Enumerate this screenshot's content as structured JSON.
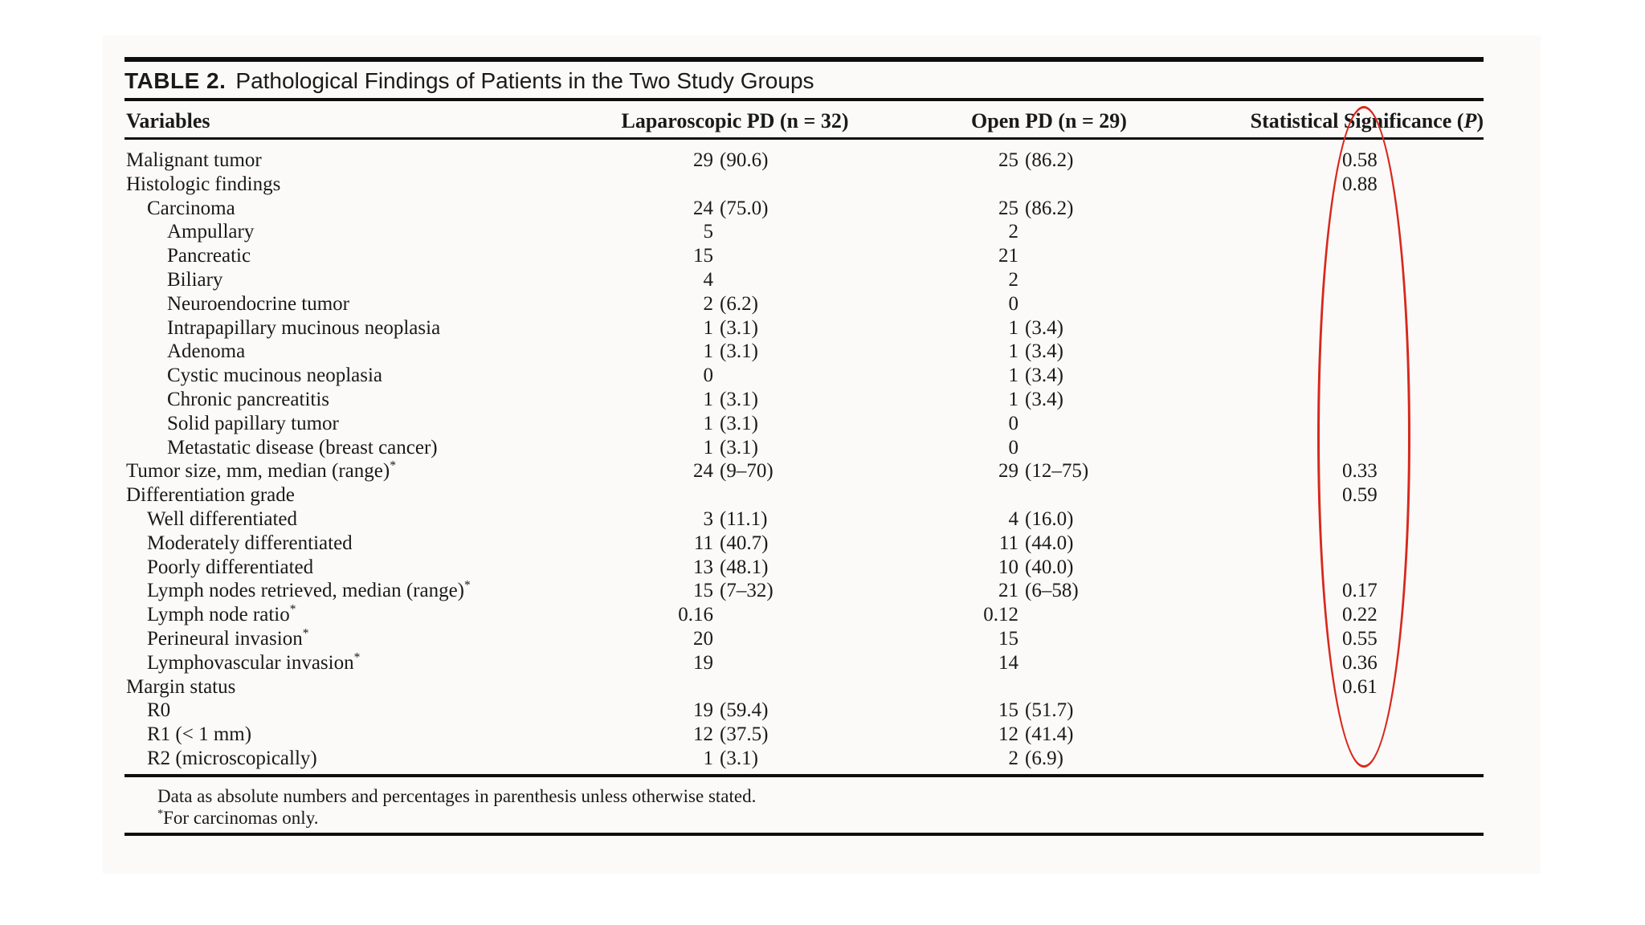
{
  "title": {
    "label": "TABLE 2.",
    "text": "Pathological Findings of Patients in the Two Study Groups"
  },
  "header": {
    "variables": "Variables",
    "laparoscopic": "Laparoscopic PD (n = 32)",
    "open": "Open PD (n = 29)",
    "stat_prefix": "Statistical Significance (",
    "stat_p": "P",
    "stat_suffix": ")"
  },
  "table": {
    "rows": [
      {
        "label": "Malignant tumor",
        "indent": 0,
        "star": false,
        "lap_n": "29",
        "lap_p": "(90.6)",
        "open_n": "25",
        "open_p": "(86.2)",
        "p": "0.58"
      },
      {
        "label": "Histologic findings",
        "indent": 0,
        "star": false,
        "lap_n": "",
        "lap_p": "",
        "open_n": "",
        "open_p": "",
        "p": "0.88"
      },
      {
        "label": "Carcinoma",
        "indent": 1,
        "star": false,
        "lap_n": "24",
        "lap_p": "(75.0)",
        "open_n": "25",
        "open_p": "(86.2)",
        "p": ""
      },
      {
        "label": "Ampullary",
        "indent": 2,
        "star": false,
        "lap_n": "5",
        "lap_p": "",
        "open_n": "2",
        "open_p": "",
        "p": ""
      },
      {
        "label": "Pancreatic",
        "indent": 2,
        "star": false,
        "lap_n": "15",
        "lap_p": "",
        "open_n": "21",
        "open_p": "",
        "p": ""
      },
      {
        "label": "Biliary",
        "indent": 2,
        "star": false,
        "lap_n": "4",
        "lap_p": "",
        "open_n": "2",
        "open_p": "",
        "p": ""
      },
      {
        "label": "Neuroendocrine tumor",
        "indent": 2,
        "star": false,
        "lap_n": "2",
        "lap_p": "(6.2)",
        "open_n": "0",
        "open_p": "",
        "p": ""
      },
      {
        "label": "Intrapapillary mucinous neoplasia",
        "indent": 2,
        "star": false,
        "lap_n": "1",
        "lap_p": "(3.1)",
        "open_n": "1",
        "open_p": "(3.4)",
        "p": ""
      },
      {
        "label": "Adenoma",
        "indent": 2,
        "star": false,
        "lap_n": "1",
        "lap_p": "(3.1)",
        "open_n": "1",
        "open_p": "(3.4)",
        "p": ""
      },
      {
        "label": "Cystic mucinous neoplasia",
        "indent": 2,
        "star": false,
        "lap_n": "0",
        "lap_p": "",
        "open_n": "1",
        "open_p": "(3.4)",
        "p": ""
      },
      {
        "label": "Chronic pancreatitis",
        "indent": 2,
        "star": false,
        "lap_n": "1",
        "lap_p": "(3.1)",
        "open_n": "1",
        "open_p": "(3.4)",
        "p": ""
      },
      {
        "label": "Solid papillary tumor",
        "indent": 2,
        "star": false,
        "lap_n": "1",
        "lap_p": "(3.1)",
        "open_n": "0",
        "open_p": "",
        "p": ""
      },
      {
        "label": "Metastatic disease (breast cancer)",
        "indent": 2,
        "star": false,
        "lap_n": "1",
        "lap_p": "(3.1)",
        "open_n": "0",
        "open_p": "",
        "p": ""
      },
      {
        "label": "Tumor size, mm, median (range)",
        "indent": 0,
        "star": true,
        "lap_n": "24",
        "lap_p": "(9–70)",
        "open_n": "29",
        "open_p": "(12–75)",
        "p": "0.33"
      },
      {
        "label": "Differentiation grade",
        "indent": 0,
        "star": false,
        "lap_n": "",
        "lap_p": "",
        "open_n": "",
        "open_p": "",
        "p": "0.59"
      },
      {
        "label": "Well differentiated",
        "indent": 1,
        "star": false,
        "lap_n": "3",
        "lap_p": "(11.1)",
        "open_n": "4",
        "open_p": "(16.0)",
        "p": ""
      },
      {
        "label": "Moderately differentiated",
        "indent": 1,
        "star": false,
        "lap_n": "11",
        "lap_p": "(40.7)",
        "open_n": "11",
        "open_p": "(44.0)",
        "p": ""
      },
      {
        "label": "Poorly differentiated",
        "indent": 1,
        "star": false,
        "lap_n": "13",
        "lap_p": "(48.1)",
        "open_n": "10",
        "open_p": "(40.0)",
        "p": ""
      },
      {
        "label": "Lymph nodes retrieved, median (range)",
        "indent": 1,
        "star": true,
        "lap_n": "15",
        "lap_p": "(7–32)",
        "open_n": "21",
        "open_p": "(6–58)",
        "p": "0.17"
      },
      {
        "label": "Lymph node ratio",
        "indent": 1,
        "star": true,
        "lap_n": "0.16",
        "lap_p": "",
        "open_n": "0.12",
        "open_p": "",
        "p": "0.22"
      },
      {
        "label": "Perineural invasion",
        "indent": 1,
        "star": true,
        "lap_n": "20",
        "lap_p": "",
        "open_n": "15",
        "open_p": "",
        "p": "0.55"
      },
      {
        "label": "Lymphovascular invasion",
        "indent": 1,
        "star": true,
        "lap_n": "19",
        "lap_p": "",
        "open_n": "14",
        "open_p": "",
        "p": "0.36"
      },
      {
        "label": "Margin status",
        "indent": 0,
        "star": false,
        "lap_n": "",
        "lap_p": "",
        "open_n": "",
        "open_p": "",
        "p": "0.61"
      },
      {
        "label": "R0",
        "indent": 1,
        "star": false,
        "lap_n": "19",
        "lap_p": "(59.4)",
        "open_n": "15",
        "open_p": "(51.7)",
        "p": ""
      },
      {
        "label": "R1 (< 1 mm)",
        "indent": 1,
        "star": false,
        "lap_n": "12",
        "lap_p": "(37.5)",
        "open_n": "12",
        "open_p": "(41.4)",
        "p": ""
      },
      {
        "label": "R2 (microscopically)",
        "indent": 1,
        "star": false,
        "lap_n": "1",
        "lap_p": "(3.1)",
        "open_n": "2",
        "open_p": "(6.9)",
        "p": ""
      }
    ]
  },
  "footnotes": {
    "note1": "Data as absolute numbers and percentages in parenthesis unless otherwise stated.",
    "note2_star": "*",
    "note2_text": "For carcinomas only."
  },
  "annotation": {
    "shape": "ellipse",
    "color": "#d8281c"
  }
}
